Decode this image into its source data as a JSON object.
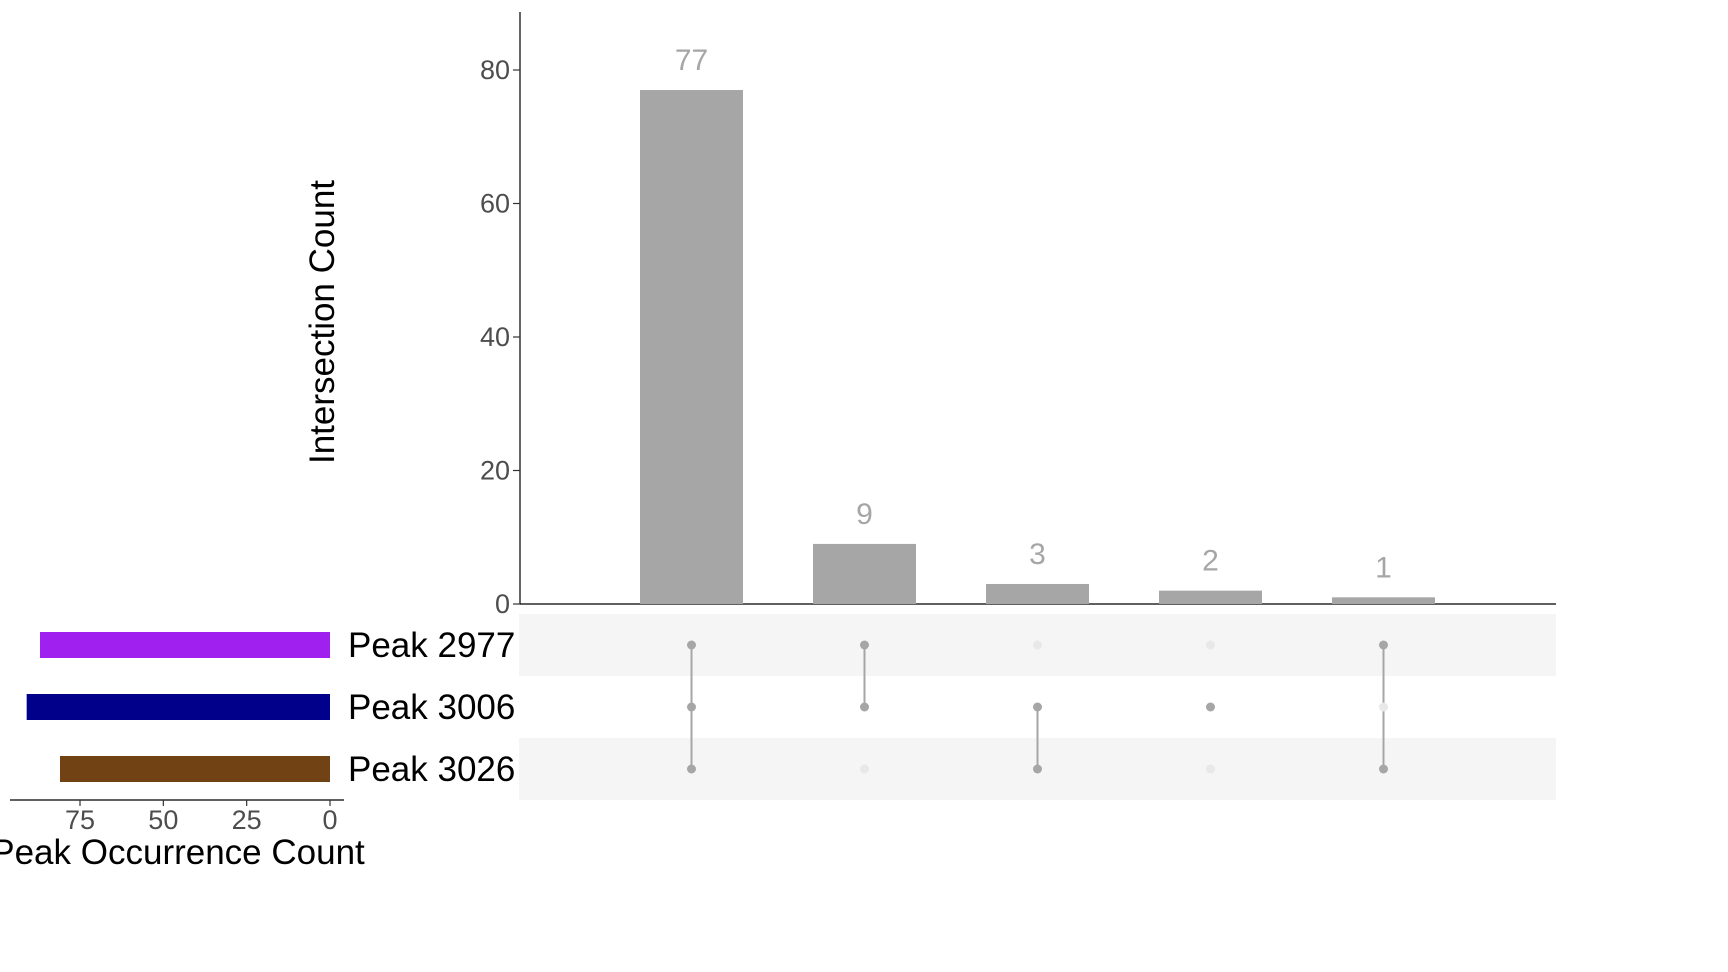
{
  "chart_data": {
    "type": "upset",
    "intersections": {
      "ylabel": "Intersection Count",
      "ylim": [
        0,
        89
      ],
      "yticks": [
        0,
        20,
        40,
        60,
        80
      ],
      "values": [
        77,
        9,
        3,
        2,
        1
      ],
      "labels": [
        "77",
        "9",
        "3",
        "2",
        "1"
      ],
      "memberships": [
        [
          "Peak 2977",
          "Peak 3006",
          "Peak 3026"
        ],
        [
          "Peak 2977",
          "Peak 3006"
        ],
        [
          "Peak 3006",
          "Peak 3026"
        ],
        [
          "Peak 3006"
        ],
        [
          "Peak 2977",
          "Peak 3026"
        ]
      ],
      "bar_color": "#a6a6a6"
    },
    "sets": {
      "names": [
        "Peak 2977",
        "Peak 3006",
        "Peak 3026"
      ],
      "sizes": [
        87,
        91,
        81
      ],
      "colors": [
        "#a020f0",
        "#00008b",
        "#704214"
      ],
      "xlabel": "Peak Occurrence Count",
      "xlim": [
        0,
        95
      ],
      "xticks": [
        75,
        50,
        25,
        0
      ]
    },
    "matrix": {
      "active_dot_color": "#a6a6a6",
      "inactive_dot_color": "#e8e8e8",
      "stripe_color": "#f5f5f5"
    }
  }
}
